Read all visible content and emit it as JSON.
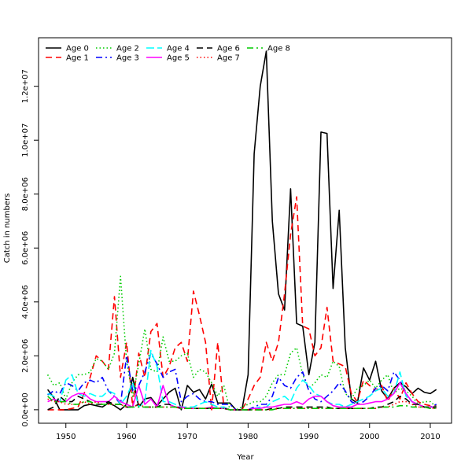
{
  "chart_data": {
    "type": "line",
    "title": "",
    "xlabel": "Year",
    "ylabel": "Catch in numbers",
    "xlim": [
      1945.5,
      2013.5
    ],
    "ylim": [
      -500000,
      13800000
    ],
    "x_ticks": [
      1950,
      1960,
      1970,
      1980,
      1990,
      2000,
      2010
    ],
    "x_tick_labels": [
      "1950",
      "1960",
      "1970",
      "1980",
      "1990",
      "2000",
      "2010"
    ],
    "y_ticks": [
      0,
      2000000,
      4000000,
      6000000,
      8000000,
      10000000,
      12000000
    ],
    "y_tick_labels": [
      "0.0e+00",
      "2.0e+06",
      "4.0e+06",
      "6.0e+06",
      "8.0e+06",
      "1.0e+07",
      "1.2e+07"
    ],
    "grid": false,
    "legend_position": "top-left",
    "x": [
      1947,
      1948,
      1949,
      1950,
      1951,
      1952,
      1953,
      1954,
      1955,
      1956,
      1957,
      1958,
      1959,
      1960,
      1961,
      1962,
      1963,
      1964,
      1965,
      1966,
      1967,
      1968,
      1969,
      1970,
      1971,
      1972,
      1973,
      1974,
      1975,
      1976,
      1977,
      1978,
      1979,
      1980,
      1981,
      1982,
      1983,
      1984,
      1985,
      1986,
      1987,
      1988,
      1989,
      1990,
      1991,
      1992,
      1993,
      1994,
      1995,
      1996,
      1997,
      1998,
      1999,
      2000,
      2001,
      2002,
      2003,
      2004,
      2005,
      2006,
      2007,
      2008,
      2009,
      2010,
      2011
    ],
    "series": [
      {
        "name": "Age 0",
        "color": "#000000",
        "dash": "solid",
        "values": [
          750000,
          450000,
          0,
          0,
          0,
          0,
          150000,
          200000,
          150000,
          100000,
          250000,
          150000,
          0,
          200000,
          1200000,
          100000,
          400000,
          450000,
          150000,
          400000,
          650000,
          800000,
          0,
          900000,
          650000,
          750000,
          400000,
          950000,
          250000,
          250000,
          250000,
          0,
          0,
          1300000,
          9500000,
          12000000,
          13300000,
          7000000,
          4300000,
          3700000,
          8200000,
          3200000,
          3100000,
          1300000,
          2500000,
          10300000,
          10250000,
          4500000,
          7400000,
          2300000,
          400000,
          250000,
          1550000,
          1100000,
          1800000,
          700000,
          400000,
          800000,
          1000000,
          850000,
          600000,
          800000,
          650000,
          600000,
          750000
        ]
      },
      {
        "name": "Age 1",
        "color": "#ff0000",
        "dash": "8,5",
        "values": [
          0,
          0,
          0,
          0,
          50000,
          100000,
          600000,
          1200000,
          2000000,
          1800000,
          1500000,
          4200000,
          1200000,
          2500000,
          100000,
          2100000,
          1200000,
          2900000,
          3200000,
          1200000,
          1600000,
          2300000,
          2500000,
          1800000,
          4400000,
          3500000,
          2500000,
          0,
          2500000,
          100000,
          0,
          0,
          0,
          400000,
          900000,
          1200000,
          2500000,
          1800000,
          2500000,
          4300000,
          6500000,
          7900000,
          3100000,
          3000000,
          2000000,
          2300000,
          3800000,
          1800000,
          1700000,
          1600000,
          600000,
          300000,
          1100000,
          900000,
          700000,
          900000,
          300000,
          800000,
          400000,
          1000000,
          600000,
          300000,
          200000,
          150000,
          150000
        ]
      },
      {
        "name": "Age 2",
        "color": "#00cc00",
        "dash": "1.5,3",
        "values": [
          1300000,
          900000,
          1000000,
          400000,
          1000000,
          1300000,
          1300000,
          1400000,
          1900000,
          1800000,
          1500000,
          2100000,
          4950000,
          1800000,
          500000,
          1700000,
          3000000,
          1500000,
          1400000,
          2700000,
          1800000,
          1800000,
          2000000,
          2100000,
          1200000,
          1500000,
          1400000,
          1000000,
          500000,
          900000,
          0,
          0,
          100000,
          200000,
          300000,
          300000,
          500000,
          1000000,
          1300000,
          1300000,
          2100000,
          2300000,
          1300000,
          800000,
          1000000,
          1300000,
          1200000,
          1800000,
          1600000,
          600000,
          400000,
          800000,
          900000,
          1100000,
          800000,
          1100000,
          1300000,
          600000,
          800000,
          700000,
          500000,
          200000,
          300000,
          300000,
          100000
        ]
      },
      {
        "name": "Age 3",
        "color": "#0000ff",
        "dash": "8,4,2,4",
        "values": [
          550000,
          700000,
          600000,
          1000000,
          900000,
          700000,
          1000000,
          1100000,
          1000000,
          1200000,
          700000,
          500000,
          200000,
          2000000,
          700000,
          900000,
          1400000,
          2100000,
          1700000,
          1200000,
          1400000,
          1500000,
          300000,
          500000,
          600000,
          400000,
          300000,
          300000,
          200000,
          200000,
          200000,
          0,
          0,
          0,
          100000,
          200000,
          200000,
          500000,
          1200000,
          900000,
          800000,
          1200000,
          1400000,
          700000,
          400000,
          300000,
          500000,
          700000,
          1000000,
          700000,
          300000,
          200000,
          300000,
          500000,
          800000,
          900000,
          700000,
          1400000,
          1100000,
          600000,
          300000,
          200000,
          100000,
          100000,
          200000
        ]
      },
      {
        "name": "Age 4",
        "color": "#00ffff",
        "dash": "10,4",
        "values": [
          600000,
          500000,
          300000,
          1100000,
          1300000,
          600000,
          500000,
          600000,
          500000,
          500000,
          700000,
          600000,
          200000,
          500000,
          1000000,
          100000,
          300000,
          2200000,
          1600000,
          300000,
          300000,
          200000,
          100000,
          100000,
          100000,
          200000,
          300000,
          200000,
          100000,
          100000,
          0,
          0,
          0,
          0,
          50000,
          100000,
          100000,
          300000,
          400000,
          500000,
          300000,
          800000,
          1100000,
          900000,
          600000,
          500000,
          300000,
          200000,
          200000,
          100000,
          200000,
          300000,
          400000,
          500000,
          700000,
          800000,
          500000,
          600000,
          1400000,
          500000,
          300000,
          200000,
          100000,
          100000,
          100000
        ]
      },
      {
        "name": "Age 5",
        "color": "#ff00ff",
        "dash": "solid",
        "values": [
          300000,
          400000,
          300000,
          300000,
          500000,
          600000,
          600000,
          400000,
          300000,
          300000,
          300000,
          500000,
          300000,
          200000,
          100000,
          900000,
          200000,
          400000,
          100000,
          900000,
          200000,
          100000,
          100000,
          50000,
          50000,
          50000,
          50000,
          100000,
          50000,
          50000,
          0,
          0,
          0,
          0,
          50000,
          50000,
          100000,
          100000,
          150000,
          200000,
          200000,
          300000,
          200000,
          400000,
          500000,
          500000,
          300000,
          150000,
          100000,
          100000,
          100000,
          200000,
          200000,
          250000,
          300000,
          300000,
          400000,
          600000,
          1000000,
          600000,
          300000,
          200000,
          100000,
          100000,
          100000
        ]
      },
      {
        "name": "Age 6",
        "color": "#000000",
        "dash": "8,5",
        "values": [
          0,
          100000,
          500000,
          300000,
          300000,
          500000,
          400000,
          300000,
          200000,
          200000,
          300000,
          200000,
          200000,
          100000,
          100000,
          200000,
          100000,
          100000,
          100000,
          200000,
          200000,
          100000,
          50000,
          50000,
          50000,
          50000,
          50000,
          50000,
          50000,
          50000,
          0,
          0,
          0,
          0,
          0,
          0,
          0,
          50000,
          50000,
          100000,
          100000,
          100000,
          100000,
          100000,
          100000,
          100000,
          100000,
          50000,
          50000,
          50000,
          50000,
          50000,
          50000,
          50000,
          100000,
          100000,
          200000,
          300000,
          500000,
          400000,
          200000,
          200000,
          100000,
          100000,
          100000
        ]
      },
      {
        "name": "Age 7",
        "color": "#ff0000",
        "dash": "1.5,3",
        "values": [
          400000,
          300000,
          300000,
          200000,
          200000,
          200000,
          300000,
          200000,
          300000,
          200000,
          200000,
          200000,
          200000,
          100000,
          100000,
          200000,
          100000,
          100000,
          100000,
          100000,
          100000,
          100000,
          50000,
          50000,
          50000,
          50000,
          50000,
          50000,
          50000,
          50000,
          0,
          0,
          0,
          0,
          0,
          0,
          0,
          0,
          50000,
          50000,
          50000,
          50000,
          50000,
          50000,
          50000,
          50000,
          50000,
          50000,
          50000,
          50000,
          50000,
          50000,
          50000,
          50000,
          50000,
          100000,
          100000,
          200000,
          300000,
          300000,
          200000,
          100000,
          100000,
          50000,
          50000
        ]
      },
      {
        "name": "Age 8",
        "color": "#00cc00",
        "dash": "8,4,2,4",
        "values": [
          500000,
          300000,
          300000,
          300000,
          200000,
          200000,
          300000,
          300000,
          200000,
          200000,
          200000,
          200000,
          200000,
          100000,
          100000,
          100000,
          100000,
          100000,
          100000,
          100000,
          100000,
          100000,
          50000,
          50000,
          50000,
          50000,
          50000,
          50000,
          50000,
          50000,
          0,
          0,
          0,
          0,
          0,
          0,
          0,
          0,
          50000,
          50000,
          50000,
          50000,
          50000,
          50000,
          50000,
          50000,
          50000,
          50000,
          50000,
          50000,
          50000,
          50000,
          50000,
          50000,
          50000,
          100000,
          100000,
          100000,
          150000,
          150000,
          100000,
          100000,
          100000,
          50000,
          50000
        ]
      }
    ]
  }
}
